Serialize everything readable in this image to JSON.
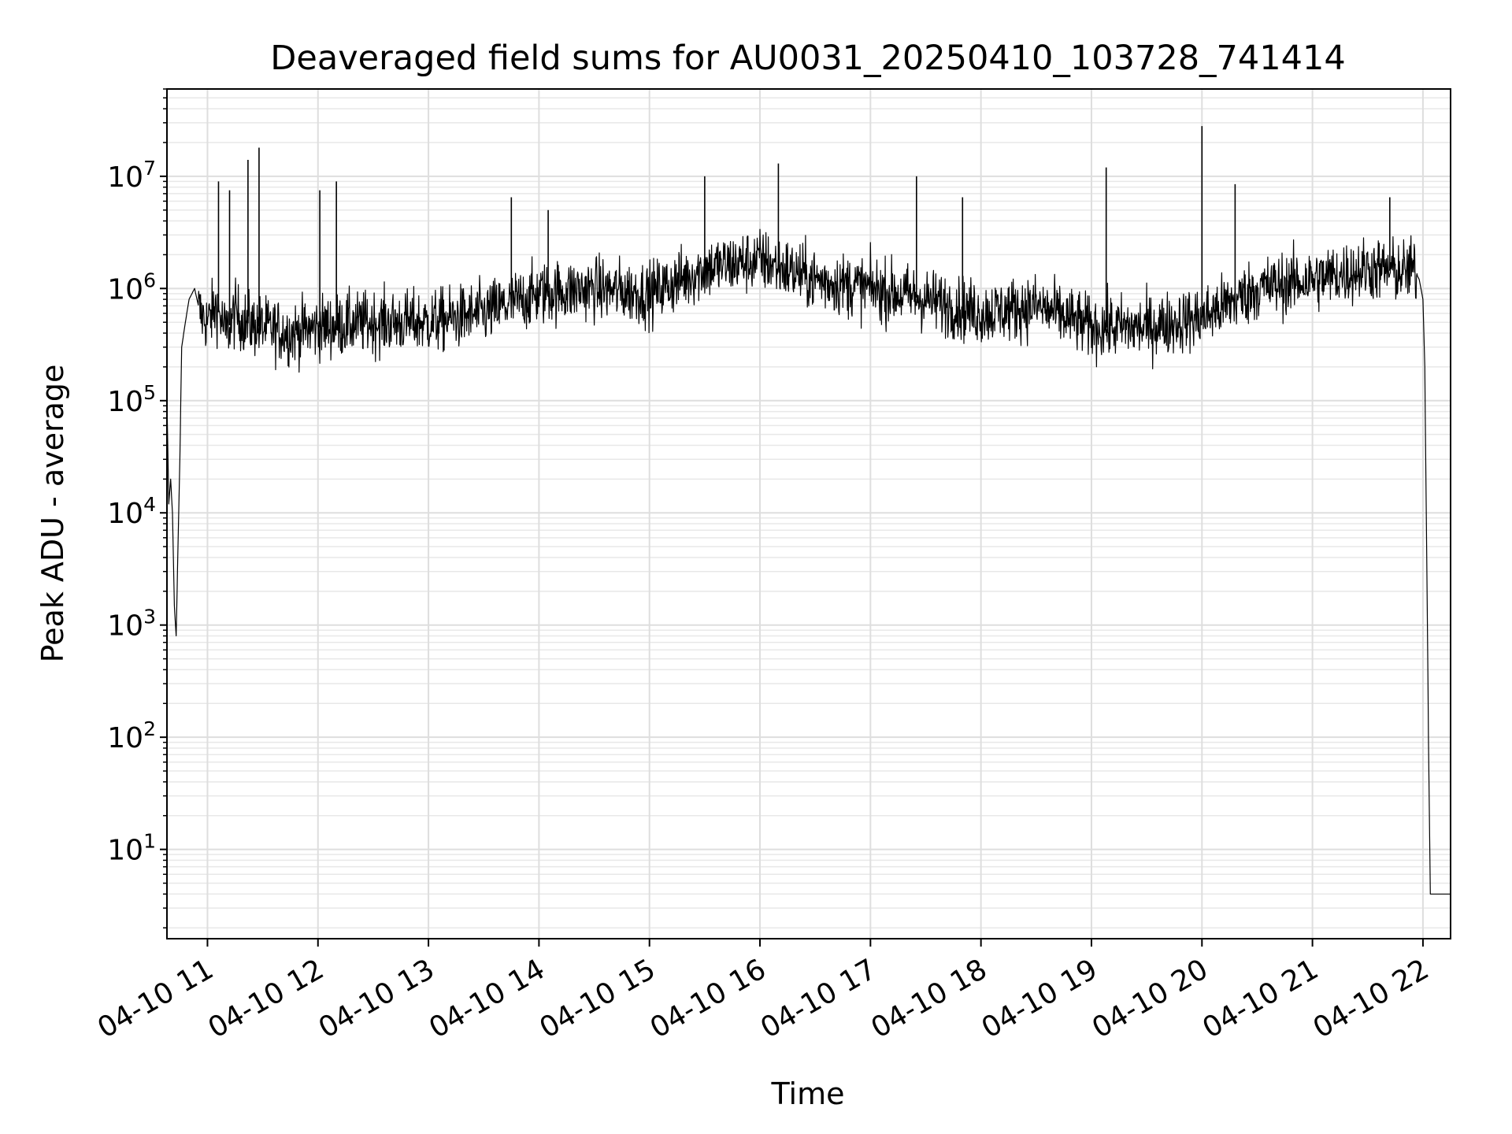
{
  "chart_data": {
    "type": "line",
    "title": "Deaveraged field sums for AU0031_20250410_103728_741414",
    "xlabel": "Time",
    "ylabel": "Peak ADU - average",
    "y_scale": "log",
    "ylim": [
      1.6,
      60000000.0
    ],
    "xlim": [
      "04-10 10:38",
      "04-10 22:15"
    ],
    "grid": true,
    "grid_minor": true,
    "legend": "none",
    "line_color": "#000000",
    "x_ticks": [
      "04-10 11",
      "04-10 12",
      "04-10 13",
      "04-10 14",
      "04-10 15",
      "04-10 16",
      "04-10 17",
      "04-10 18",
      "04-10 19",
      "04-10 20",
      "04-10 21",
      "04-10 22"
    ],
    "y_ticks": [
      {
        "base": "10",
        "exp": "1",
        "value": 10
      },
      {
        "base": "10",
        "exp": "2",
        "value": 100
      },
      {
        "base": "10",
        "exp": "3",
        "value": 1000
      },
      {
        "base": "10",
        "exp": "4",
        "value": 10000
      },
      {
        "base": "10",
        "exp": "5",
        "value": 100000
      },
      {
        "base": "10",
        "exp": "6",
        "value": 1000000
      },
      {
        "base": "10",
        "exp": "7",
        "value": 10000000
      }
    ],
    "series": [
      {
        "x": [
          "04-10 10:38",
          "04-10 10:39",
          "04-10 10:40",
          "04-10 10:41",
          "04-10 10:42",
          "04-10 10:43",
          "04-10 10:44",
          "04-10 10:45",
          "04-10 10:46",
          "04-10 10:48",
          "04-10 10:50",
          "04-10 10:53",
          "04-10 10:56",
          "04-10 11:00",
          "04-10 11:05",
          "04-10 11:10",
          "04-10 11:15",
          "04-10 11:20",
          "04-10 11:30",
          "04-10 11:45",
          "04-10 12:00",
          "04-10 12:30",
          "04-10 13:00",
          "04-10 13:30",
          "04-10 14:00",
          "04-10 14:30",
          "04-10 15:00",
          "04-10 15:30",
          "04-10 16:00",
          "04-10 16:30",
          "04-10 17:00",
          "04-10 17:30",
          "04-10 18:00",
          "04-10 18:30",
          "04-10 19:00",
          "04-10 19:30",
          "04-10 20:00",
          "04-10 20:30",
          "04-10 21:00",
          "04-10 21:30",
          "04-10 21:50",
          "04-10 21:55",
          "04-10 21:58",
          "04-10 22:00",
          "04-10 22:01",
          "04-10 22:02",
          "04-10 22:03",
          "04-10 22:04",
          "04-10 22:15"
        ],
        "y": [
          100000,
          12000,
          20000,
          10000,
          1500,
          800,
          5000,
          30000,
          300000,
          500000,
          800000,
          1000000,
          600000,
          500000,
          700000,
          400000,
          600000,
          500000,
          450000,
          400000,
          450000,
          500000,
          500000,
          600000,
          900000,
          1000000,
          900000,
          1500000,
          1800000,
          1200000,
          1000000,
          800000,
          600000,
          700000,
          450000,
          450000,
          550000,
          1000000,
          1200000,
          1500000,
          1400000,
          1500000,
          1200000,
          800000,
          200000,
          5000,
          100,
          4,
          4
        ]
      }
    ],
    "spikes": [
      {
        "x": "04-10 11:06",
        "y": 9000000
      },
      {
        "x": "04-10 11:12",
        "y": 7500000
      },
      {
        "x": "04-10 11:22",
        "y": 14000000
      },
      {
        "x": "04-10 11:28",
        "y": 18000000
      },
      {
        "x": "04-10 12:01",
        "y": 7500000
      },
      {
        "x": "04-10 12:10",
        "y": 9000000
      },
      {
        "x": "04-10 13:45",
        "y": 6500000
      },
      {
        "x": "04-10 14:05",
        "y": 5000000
      },
      {
        "x": "04-10 15:30",
        "y": 10000000
      },
      {
        "x": "04-10 16:10",
        "y": 13000000
      },
      {
        "x": "04-10 17:25",
        "y": 10000000
      },
      {
        "x": "04-10 17:50",
        "y": 6500000
      },
      {
        "x": "04-10 19:08",
        "y": 12000000
      },
      {
        "x": "04-10 20:00",
        "y": 28000000
      },
      {
        "x": "04-10 20:18",
        "y": 8500000
      },
      {
        "x": "04-10 21:42",
        "y": 6500000
      }
    ]
  }
}
